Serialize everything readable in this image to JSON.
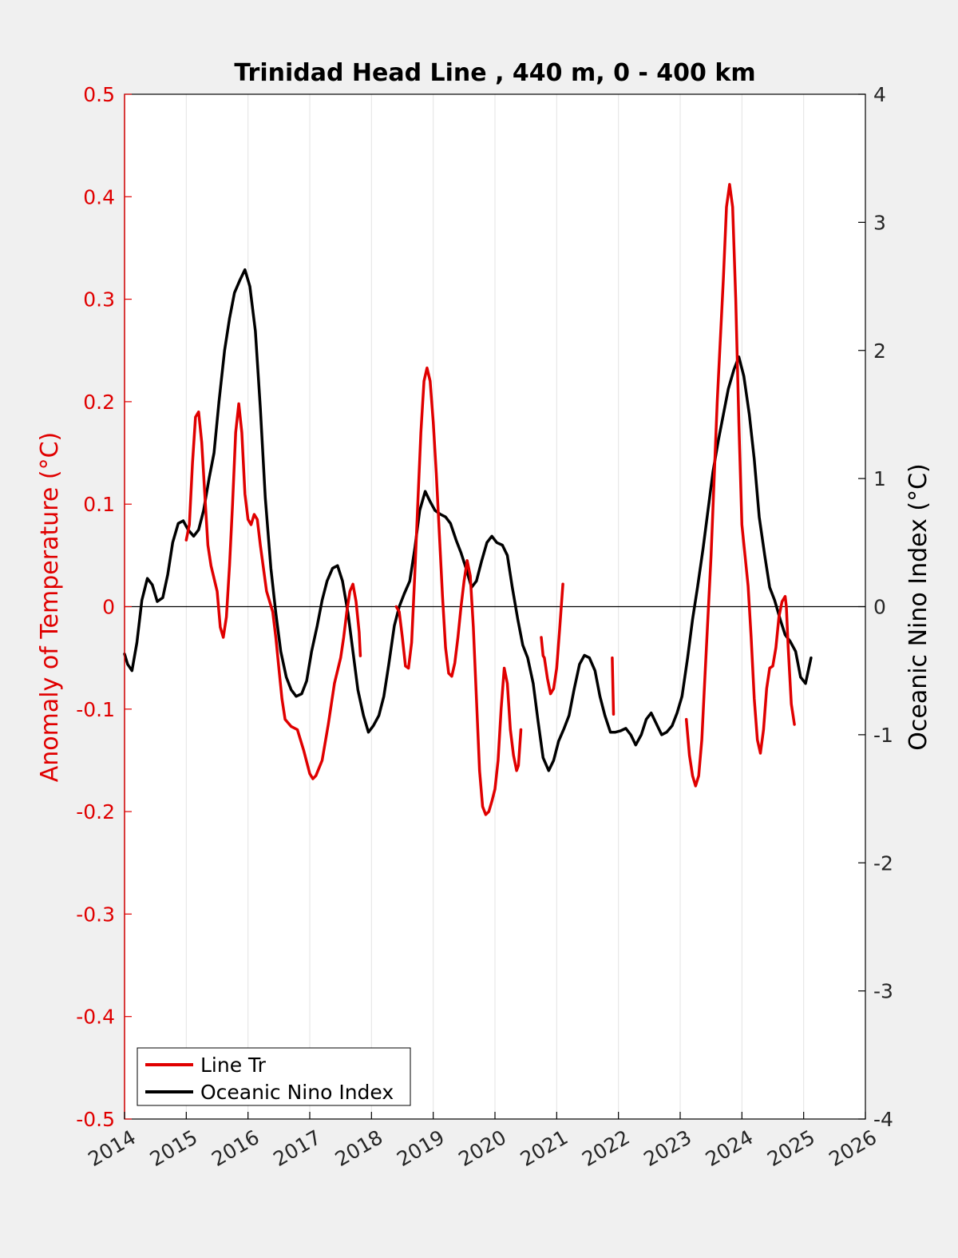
{
  "chart_data": {
    "type": "line",
    "title": "Trinidad Head Line , 440 m, 0 - 400 km",
    "xlim": [
      2014,
      2026
    ],
    "x_ticks": [
      "2014",
      "2015",
      "2016",
      "2017",
      "2018",
      "2019",
      "2020",
      "2021",
      "2022",
      "2023",
      "2024",
      "2025",
      "2026"
    ],
    "left_axis": {
      "label": "Anomaly of Temperature (°C)",
      "ylim": [
        -0.5,
        0.5
      ],
      "ticks": [
        "-0.5",
        "-0.4",
        "-0.3",
        "-0.2",
        "-0.1",
        "0",
        "0.1",
        "0.2",
        "0.3",
        "0.4",
        "0.5"
      ],
      "color": "#e00000"
    },
    "right_axis": {
      "label": "Oceanic Nino Index (°C)",
      "ylim": [
        -4,
        4
      ],
      "ticks": [
        "-4",
        "-3",
        "-2",
        "-1",
        "0",
        "1",
        "2",
        "3",
        "4"
      ],
      "color": "#000000"
    },
    "zero_line": true,
    "grid": "vertical",
    "legend_position": "bottom-left",
    "series": [
      {
        "name": "Line Tr",
        "axis": "left",
        "color": "#e00000",
        "segments": [
          [
            [
              2015.0,
              0.065
            ],
            [
              2015.05,
              0.08
            ],
            [
              2015.1,
              0.14
            ],
            [
              2015.15,
              0.185
            ],
            [
              2015.2,
              0.19
            ],
            [
              2015.25,
              0.16
            ],
            [
              2015.3,
              0.11
            ],
            [
              2015.35,
              0.06
            ],
            [
              2015.4,
              0.04
            ],
            [
              2015.5,
              0.015
            ],
            [
              2015.55,
              -0.02
            ],
            [
              2015.6,
              -0.03
            ],
            [
              2015.65,
              -0.01
            ],
            [
              2015.7,
              0.04
            ],
            [
              2015.75,
              0.1
            ],
            [
              2015.8,
              0.17
            ],
            [
              2015.85,
              0.198
            ],
            [
              2015.9,
              0.17
            ],
            [
              2015.95,
              0.11
            ],
            [
              2016.0,
              0.085
            ],
            [
              2016.05,
              0.08
            ],
            [
              2016.1,
              0.09
            ],
            [
              2016.15,
              0.085
            ],
            [
              2016.2,
              0.06
            ],
            [
              2016.3,
              0.015
            ],
            [
              2016.4,
              -0.005
            ],
            [
              2016.45,
              -0.03
            ],
            [
              2016.5,
              -0.06
            ],
            [
              2016.55,
              -0.09
            ],
            [
              2016.6,
              -0.11
            ],
            [
              2016.7,
              -0.117
            ],
            [
              2016.8,
              -0.12
            ],
            [
              2016.9,
              -0.14
            ],
            [
              2017.0,
              -0.163
            ],
            [
              2017.05,
              -0.168
            ],
            [
              2017.1,
              -0.165
            ],
            [
              2017.2,
              -0.15
            ],
            [
              2017.3,
              -0.115
            ],
            [
              2017.4,
              -0.075
            ],
            [
              2017.5,
              -0.05
            ],
            [
              2017.55,
              -0.03
            ],
            [
              2017.6,
              -0.005
            ],
            [
              2017.65,
              0.015
            ],
            [
              2017.7,
              0.022
            ],
            [
              2017.75,
              0.005
            ],
            [
              2017.8,
              -0.025
            ],
            [
              2017.82,
              -0.048
            ]
          ],
          [
            [
              2018.4,
              0.0
            ],
            [
              2018.45,
              -0.005
            ],
            [
              2018.5,
              -0.03
            ],
            [
              2018.55,
              -0.058
            ],
            [
              2018.6,
              -0.06
            ],
            [
              2018.65,
              -0.035
            ],
            [
              2018.7,
              0.03
            ],
            [
              2018.75,
              0.1
            ],
            [
              2018.8,
              0.17
            ],
            [
              2018.85,
              0.22
            ],
            [
              2018.9,
              0.233
            ],
            [
              2018.95,
              0.22
            ],
            [
              2019.0,
              0.18
            ],
            [
              2019.05,
              0.13
            ],
            [
              2019.1,
              0.07
            ],
            [
              2019.15,
              0.01
            ],
            [
              2019.2,
              -0.04
            ],
            [
              2019.25,
              -0.065
            ],
            [
              2019.3,
              -0.068
            ],
            [
              2019.35,
              -0.055
            ],
            [
              2019.4,
              -0.03
            ],
            [
              2019.45,
              0.0
            ],
            [
              2019.5,
              0.025
            ],
            [
              2019.55,
              0.045
            ],
            [
              2019.6,
              0.03
            ],
            [
              2019.65,
              -0.02
            ],
            [
              2019.7,
              -0.09
            ],
            [
              2019.75,
              -0.16
            ],
            [
              2019.8,
              -0.195
            ],
            [
              2019.85,
              -0.203
            ],
            [
              2019.9,
              -0.2
            ],
            [
              2019.95,
              -0.19
            ],
            [
              2020.0,
              -0.178
            ],
            [
              2020.05,
              -0.15
            ],
            [
              2020.1,
              -0.1
            ],
            [
              2020.15,
              -0.06
            ],
            [
              2020.2,
              -0.075
            ],
            [
              2020.25,
              -0.12
            ],
            [
              2020.3,
              -0.145
            ],
            [
              2020.35,
              -0.16
            ],
            [
              2020.38,
              -0.155
            ],
            [
              2020.42,
              -0.12
            ]
          ],
          [
            [
              2020.75,
              -0.03
            ],
            [
              2020.78,
              -0.048
            ],
            [
              2020.8,
              -0.05
            ],
            [
              2020.85,
              -0.07
            ],
            [
              2020.9,
              -0.085
            ],
            [
              2020.95,
              -0.08
            ],
            [
              2021.0,
              -0.06
            ],
            [
              2021.05,
              -0.02
            ],
            [
              2021.1,
              0.022
            ]
          ],
          [
            [
              2021.9,
              -0.05
            ],
            [
              2021.92,
              -0.105
            ]
          ],
          [
            [
              2023.1,
              -0.11
            ],
            [
              2023.15,
              -0.145
            ],
            [
              2023.2,
              -0.165
            ],
            [
              2023.25,
              -0.175
            ],
            [
              2023.3,
              -0.165
            ],
            [
              2023.35,
              -0.13
            ],
            [
              2023.4,
              -0.07
            ],
            [
              2023.5,
              0.05
            ],
            [
              2023.6,
              0.2
            ],
            [
              2023.7,
              0.32
            ],
            [
              2023.75,
              0.39
            ],
            [
              2023.8,
              0.412
            ],
            [
              2023.85,
              0.39
            ],
            [
              2023.9,
              0.3
            ],
            [
              2023.95,
              0.18
            ],
            [
              2024.0,
              0.08
            ],
            [
              2024.05,
              0.05
            ],
            [
              2024.1,
              0.02
            ],
            [
              2024.15,
              -0.03
            ],
            [
              2024.2,
              -0.09
            ],
            [
              2024.25,
              -0.13
            ],
            [
              2024.3,
              -0.143
            ],
            [
              2024.35,
              -0.12
            ],
            [
              2024.4,
              -0.08
            ],
            [
              2024.45,
              -0.06
            ],
            [
              2024.5,
              -0.058
            ],
            [
              2024.55,
              -0.04
            ],
            [
              2024.6,
              -0.01
            ],
            [
              2024.65,
              0.005
            ],
            [
              2024.7,
              0.01
            ],
            [
              2024.72,
              0.0
            ],
            [
              2024.75,
              -0.04
            ],
            [
              2024.8,
              -0.095
            ],
            [
              2024.85,
              -0.115
            ]
          ]
        ]
      },
      {
        "name": "Oceanic Nino Index",
        "axis": "right",
        "color": "#000000",
        "points": [
          [
            2014.0,
            -0.37
          ],
          [
            2014.05,
            -0.45
          ],
          [
            2014.12,
            -0.5
          ],
          [
            2014.2,
            -0.28
          ],
          [
            2014.28,
            0.05
          ],
          [
            2014.37,
            0.22
          ],
          [
            2014.45,
            0.17
          ],
          [
            2014.53,
            0.04
          ],
          [
            2014.62,
            0.07
          ],
          [
            2014.7,
            0.25
          ],
          [
            2014.78,
            0.5
          ],
          [
            2014.87,
            0.65
          ],
          [
            2014.95,
            0.67
          ],
          [
            2015.03,
            0.6
          ],
          [
            2015.12,
            0.55
          ],
          [
            2015.2,
            0.6
          ],
          [
            2015.28,
            0.75
          ],
          [
            2015.37,
            1.0
          ],
          [
            2015.45,
            1.2
          ],
          [
            2015.53,
            1.6
          ],
          [
            2015.62,
            2.0
          ],
          [
            2015.7,
            2.25
          ],
          [
            2015.78,
            2.45
          ],
          [
            2015.87,
            2.55
          ],
          [
            2015.95,
            2.63
          ],
          [
            2016.03,
            2.5
          ],
          [
            2016.12,
            2.15
          ],
          [
            2016.2,
            1.55
          ],
          [
            2016.28,
            0.85
          ],
          [
            2016.37,
            0.3
          ],
          [
            2016.45,
            -0.05
          ],
          [
            2016.53,
            -0.35
          ],
          [
            2016.62,
            -0.55
          ],
          [
            2016.7,
            -0.65
          ],
          [
            2016.78,
            -0.7
          ],
          [
            2016.87,
            -0.68
          ],
          [
            2016.95,
            -0.58
          ],
          [
            2017.03,
            -0.35
          ],
          [
            2017.12,
            -0.15
          ],
          [
            2017.2,
            0.05
          ],
          [
            2017.28,
            0.2
          ],
          [
            2017.37,
            0.3
          ],
          [
            2017.45,
            0.32
          ],
          [
            2017.53,
            0.2
          ],
          [
            2017.62,
            -0.05
          ],
          [
            2017.7,
            -0.35
          ],
          [
            2017.78,
            -0.65
          ],
          [
            2017.87,
            -0.85
          ],
          [
            2017.95,
            -0.98
          ],
          [
            2018.03,
            -0.93
          ],
          [
            2018.12,
            -0.85
          ],
          [
            2018.2,
            -0.7
          ],
          [
            2018.28,
            -0.45
          ],
          [
            2018.37,
            -0.15
          ],
          [
            2018.45,
            0.0
          ],
          [
            2018.53,
            0.1
          ],
          [
            2018.62,
            0.2
          ],
          [
            2018.7,
            0.45
          ],
          [
            2018.78,
            0.75
          ],
          [
            2018.87,
            0.9
          ],
          [
            2018.95,
            0.82
          ],
          [
            2019.03,
            0.75
          ],
          [
            2019.12,
            0.72
          ],
          [
            2019.2,
            0.7
          ],
          [
            2019.28,
            0.65
          ],
          [
            2019.37,
            0.52
          ],
          [
            2019.45,
            0.42
          ],
          [
            2019.53,
            0.3
          ],
          [
            2019.62,
            0.15
          ],
          [
            2019.7,
            0.2
          ],
          [
            2019.78,
            0.35
          ],
          [
            2019.87,
            0.5
          ],
          [
            2019.95,
            0.55
          ],
          [
            2020.03,
            0.5
          ],
          [
            2020.12,
            0.48
          ],
          [
            2020.2,
            0.4
          ],
          [
            2020.28,
            0.15
          ],
          [
            2020.37,
            -0.1
          ],
          [
            2020.45,
            -0.3
          ],
          [
            2020.53,
            -0.4
          ],
          [
            2020.62,
            -0.6
          ],
          [
            2020.7,
            -0.9
          ],
          [
            2020.78,
            -1.18
          ],
          [
            2020.87,
            -1.28
          ],
          [
            2020.95,
            -1.2
          ],
          [
            2021.03,
            -1.05
          ],
          [
            2021.12,
            -0.95
          ],
          [
            2021.2,
            -0.85
          ],
          [
            2021.28,
            -0.65
          ],
          [
            2021.37,
            -0.45
          ],
          [
            2021.45,
            -0.38
          ],
          [
            2021.53,
            -0.4
          ],
          [
            2021.62,
            -0.5
          ],
          [
            2021.7,
            -0.7
          ],
          [
            2021.78,
            -0.85
          ],
          [
            2021.87,
            -0.98
          ],
          [
            2021.95,
            -0.98
          ],
          [
            2022.03,
            -0.97
          ],
          [
            2022.12,
            -0.95
          ],
          [
            2022.2,
            -1.0
          ],
          [
            2022.28,
            -1.08
          ],
          [
            2022.37,
            -1.0
          ],
          [
            2022.45,
            -0.88
          ],
          [
            2022.53,
            -0.83
          ],
          [
            2022.62,
            -0.92
          ],
          [
            2022.7,
            -1.0
          ],
          [
            2022.78,
            -0.98
          ],
          [
            2022.87,
            -0.93
          ],
          [
            2022.95,
            -0.83
          ],
          [
            2023.03,
            -0.7
          ],
          [
            2023.12,
            -0.4
          ],
          [
            2023.2,
            -0.1
          ],
          [
            2023.28,
            0.15
          ],
          [
            2023.37,
            0.45
          ],
          [
            2023.45,
            0.75
          ],
          [
            2023.53,
            1.05
          ],
          [
            2023.62,
            1.3
          ],
          [
            2023.7,
            1.5
          ],
          [
            2023.78,
            1.7
          ],
          [
            2023.87,
            1.85
          ],
          [
            2023.95,
            1.95
          ],
          [
            2024.03,
            1.8
          ],
          [
            2024.12,
            1.5
          ],
          [
            2024.2,
            1.15
          ],
          [
            2024.28,
            0.7
          ],
          [
            2024.37,
            0.4
          ],
          [
            2024.45,
            0.15
          ],
          [
            2024.53,
            0.05
          ],
          [
            2024.62,
            -0.1
          ],
          [
            2024.7,
            -0.22
          ],
          [
            2024.78,
            -0.27
          ],
          [
            2024.87,
            -0.35
          ],
          [
            2024.95,
            -0.55
          ],
          [
            2025.03,
            -0.6
          ],
          [
            2025.12,
            -0.4
          ]
        ]
      }
    ]
  }
}
